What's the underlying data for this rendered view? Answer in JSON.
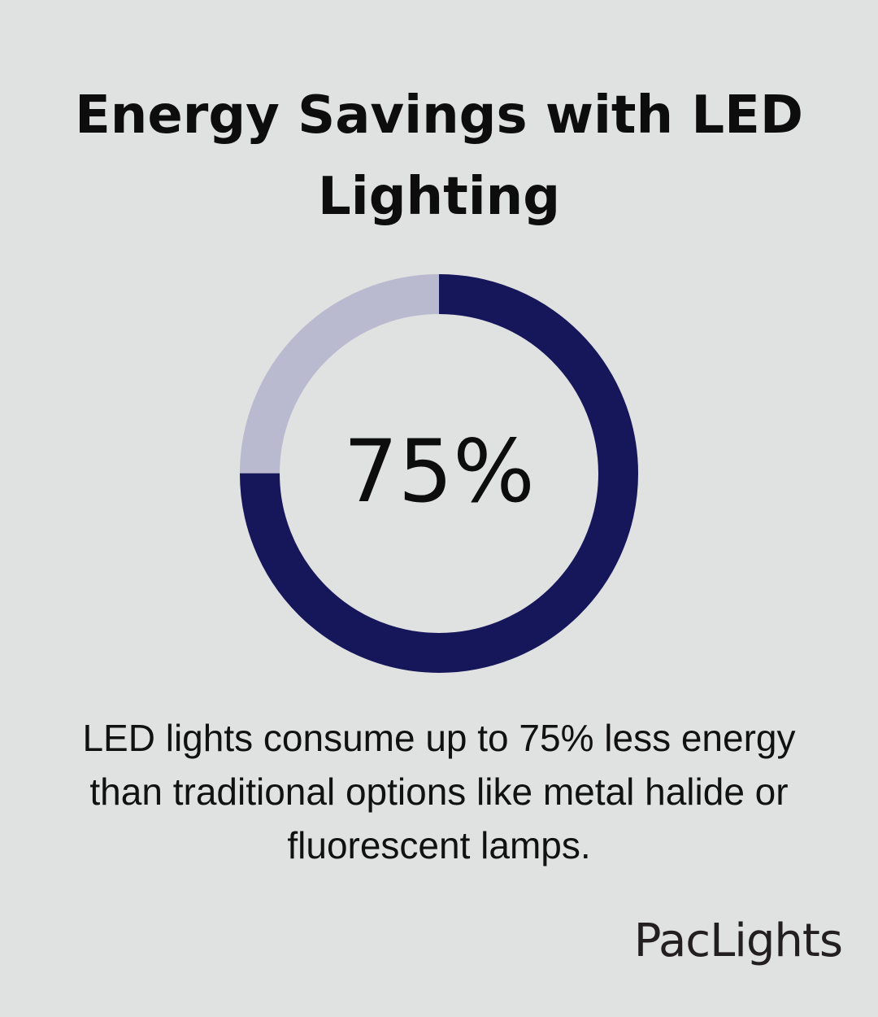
{
  "chart_data": {
    "type": "pie",
    "variant": "donut",
    "title": "Energy Savings with LED Lighting",
    "center_label": "75%",
    "values": [
      75,
      25
    ],
    "colors": [
      "#16165a",
      "#b9b9cf"
    ],
    "start": "top",
    "direction": "clockwise"
  },
  "description": "LED lights consume up to 75% less energy than traditional options like metal halide or fluorescent lamps.",
  "brand": {
    "logo_text": "PacLights",
    "color": "#231f20"
  }
}
